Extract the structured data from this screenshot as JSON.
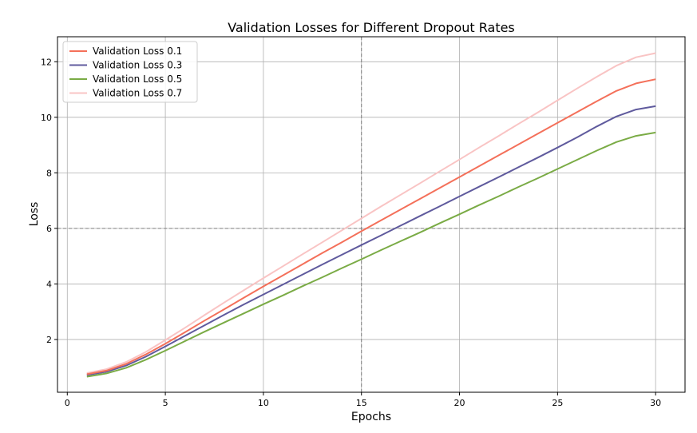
{
  "chart_data": {
    "type": "line",
    "title": "Validation Losses for Different Dropout Rates",
    "xlabel": "Epochs",
    "ylabel": "Loss",
    "xlim": [
      -0.5,
      31.5
    ],
    "ylim": [
      0.1,
      12.9
    ],
    "xticks": [
      0,
      5,
      10,
      15,
      20,
      25,
      30
    ],
    "yticks": [
      2,
      4,
      6,
      8,
      10,
      12
    ],
    "grid": true,
    "legend_position": "top-left",
    "reference_lines": [
      {
        "orientation": "vertical",
        "value": 15,
        "style": "dashed",
        "color": "#808080"
      },
      {
        "orientation": "horizontal",
        "value": 6,
        "style": "dashed",
        "color": "#808080"
      }
    ],
    "x": [
      1,
      2,
      3,
      4,
      5,
      6,
      7,
      8,
      9,
      10,
      11,
      12,
      13,
      14,
      15,
      16,
      17,
      18,
      19,
      20,
      21,
      22,
      23,
      24,
      25,
      26,
      27,
      28,
      29,
      30
    ],
    "series": [
      {
        "name": "Validation Loss 0.1",
        "color": "#f4705a",
        "values": [
          0.75,
          0.88,
          1.12,
          1.46,
          1.85,
          2.26,
          2.68,
          3.09,
          3.5,
          3.91,
          4.31,
          4.71,
          5.11,
          5.5,
          5.9,
          6.29,
          6.68,
          7.07,
          7.46,
          7.85,
          8.24,
          8.63,
          9.02,
          9.41,
          9.8,
          10.19,
          10.58,
          10.95,
          11.22,
          11.37
        ]
      },
      {
        "name": "Validation Loss 0.3",
        "color": "#5f5a9d",
        "values": [
          0.72,
          0.84,
          1.06,
          1.38,
          1.75,
          2.13,
          2.51,
          2.89,
          3.26,
          3.62,
          3.98,
          4.34,
          4.7,
          5.05,
          5.4,
          5.75,
          6.1,
          6.45,
          6.8,
          7.15,
          7.5,
          7.85,
          8.2,
          8.55,
          8.91,
          9.28,
          9.67,
          10.03,
          10.28,
          10.4
        ]
      },
      {
        "name": "Validation Loss 0.5",
        "color": "#7aab45",
        "values": [
          0.66,
          0.78,
          0.98,
          1.27,
          1.6,
          1.94,
          2.28,
          2.61,
          2.94,
          3.27,
          3.59,
          3.92,
          4.24,
          4.57,
          4.89,
          5.22,
          5.54,
          5.86,
          6.19,
          6.51,
          6.84,
          7.16,
          7.49,
          7.81,
          8.14,
          8.47,
          8.8,
          9.11,
          9.33,
          9.45
        ]
      },
      {
        "name": "Validation Loss 0.7",
        "color": "#f9c4c4",
        "values": [
          0.79,
          0.93,
          1.19,
          1.55,
          1.98,
          2.42,
          2.88,
          3.33,
          3.77,
          4.21,
          4.64,
          5.07,
          5.5,
          5.93,
          6.36,
          6.79,
          7.21,
          7.63,
          8.06,
          8.48,
          8.91,
          9.33,
          9.76,
          10.18,
          10.61,
          11.04,
          11.46,
          11.86,
          12.16,
          12.31
        ]
      }
    ]
  }
}
